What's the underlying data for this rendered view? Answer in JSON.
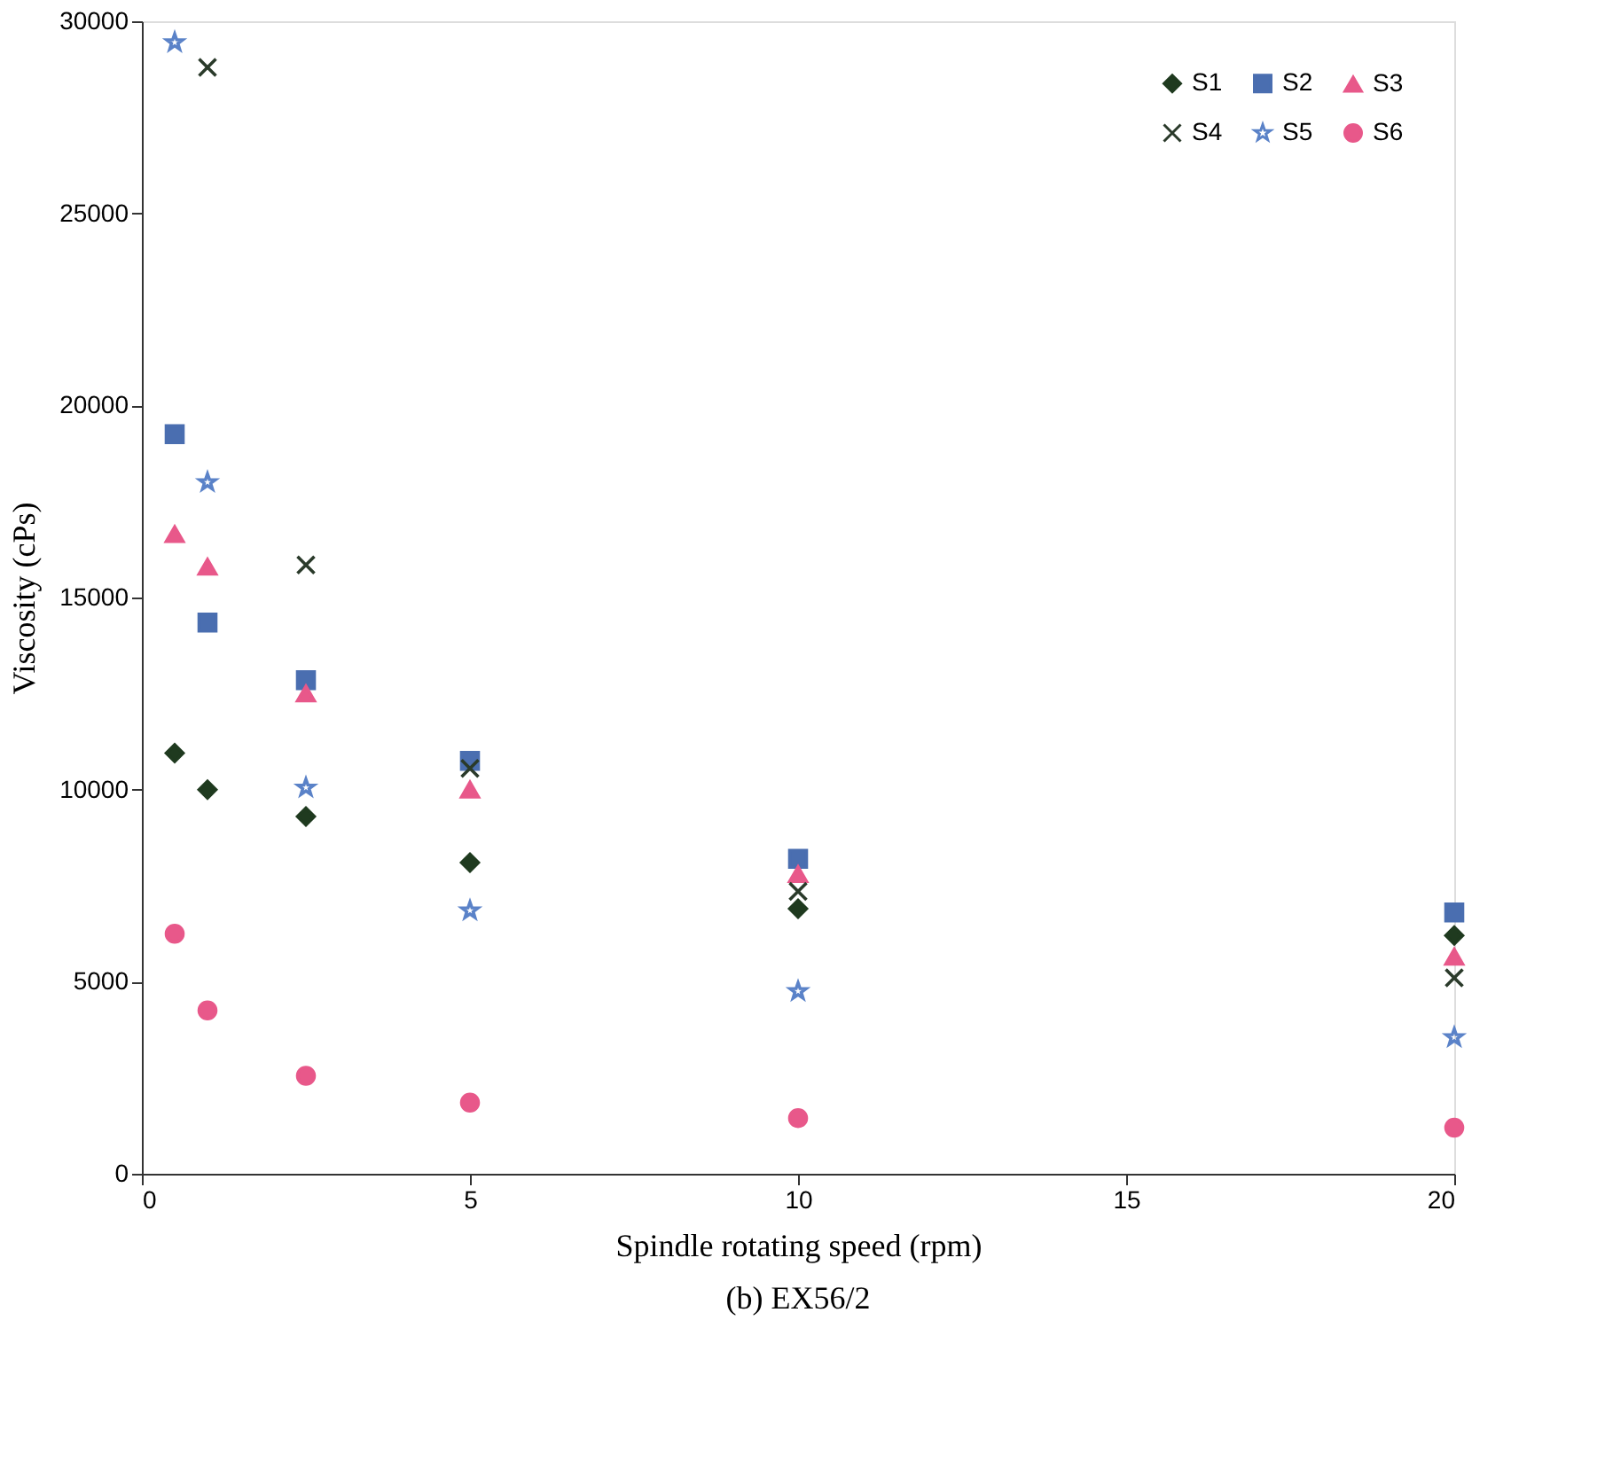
{
  "chart_data": {
    "type": "scatter",
    "title": "(b) EX56/2",
    "xlabel": "Spindle rotating speed (rpm)",
    "ylabel": "Viscosity (cPs)",
    "x": [
      0.5,
      1,
      2.5,
      5,
      10,
      20
    ],
    "xlim": [
      0,
      20
    ],
    "xticks": [
      0,
      5,
      10,
      15,
      20
    ],
    "ylim": [
      0,
      30000
    ],
    "yticks": [
      0,
      5000,
      10000,
      15000,
      20000,
      25000,
      30000
    ],
    "grid": false,
    "legend": "top right",
    "series": [
      {
        "name": "S1",
        "color": "#1f3a1f",
        "marker": "diamond",
        "values": [
          10950,
          10000,
          9300,
          8100,
          6900,
          6200
        ]
      },
      {
        "name": "S2",
        "color": "#4a6eb0",
        "marker": "square",
        "values": [
          19250,
          14350,
          12850,
          10750,
          8200,
          6800
        ]
      },
      {
        "name": "S3",
        "color": "#e8588a",
        "marker": "triangle",
        "values": [
          16650,
          15800,
          12500,
          10000,
          7800,
          5650
        ]
      },
      {
        "name": "S4",
        "color": "#2a3a2a",
        "marker": "cross",
        "values": [
          null,
          28800,
          15850,
          10550,
          7350,
          5100
        ]
      },
      {
        "name": "S5",
        "color": "#5a82c8",
        "marker": "star",
        "values": [
          29450,
          18000,
          10050,
          6850,
          4750,
          3550
        ]
      },
      {
        "name": "S6",
        "color": "#e8588a",
        "marker": "circle",
        "values": [
          6250,
          4250,
          2550,
          1850,
          1450,
          1200
        ]
      }
    ]
  }
}
